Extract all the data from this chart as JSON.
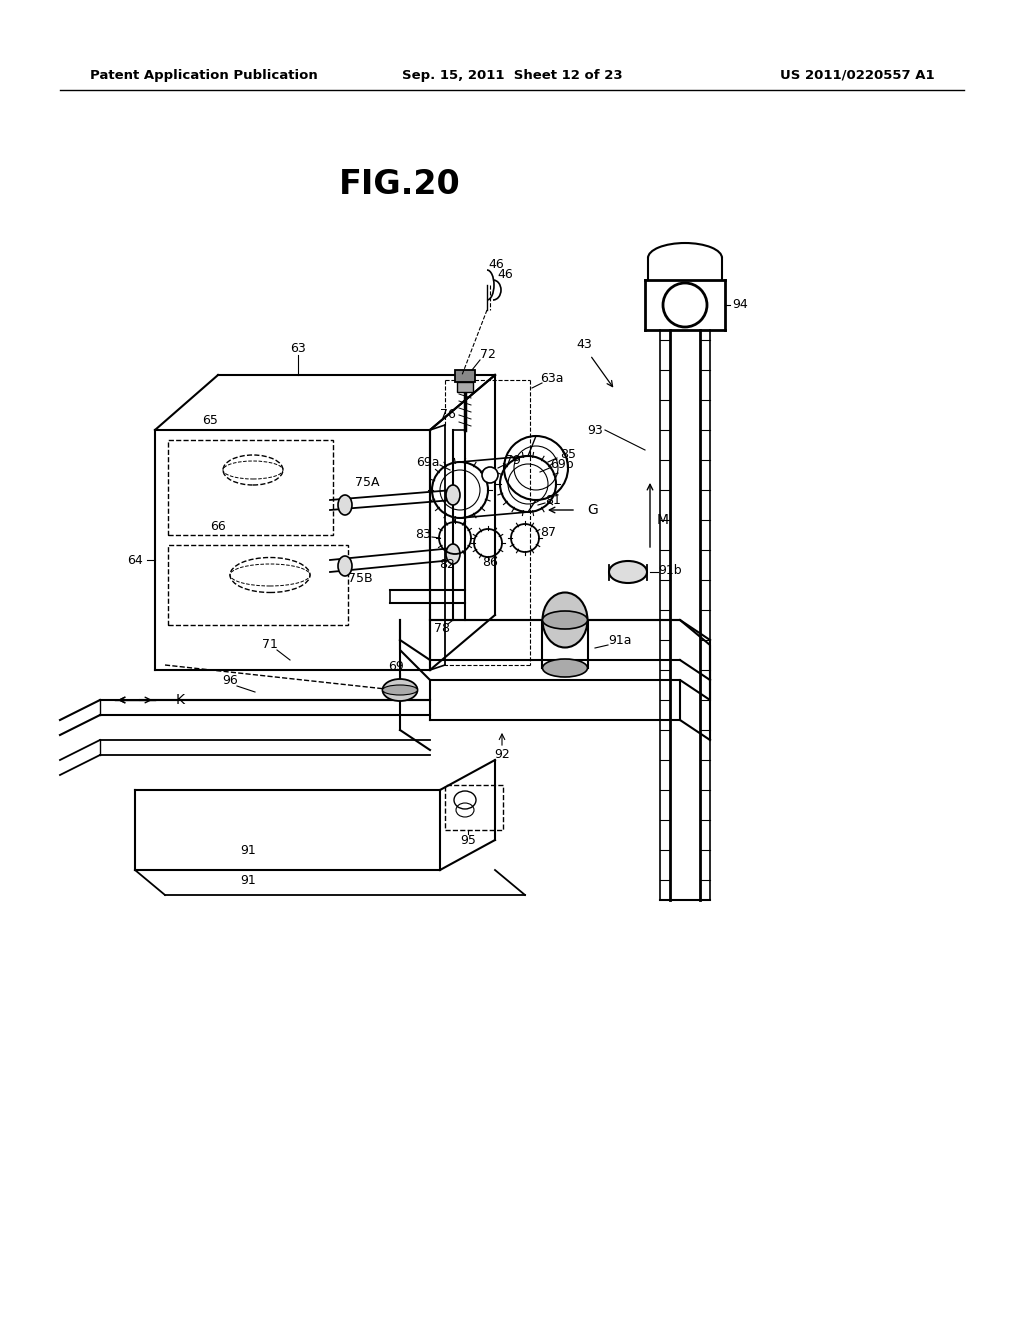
{
  "header_left": "Patent Application Publication",
  "header_middle": "Sep. 15, 2011  Sheet 12 of 23",
  "header_right": "US 2011/0220557 A1",
  "figure_title": "FIG.20",
  "bg_color": "#ffffff",
  "line_color": "#000000",
  "fig_width": 10.24,
  "fig_height": 13.2,
  "dpi": 100
}
